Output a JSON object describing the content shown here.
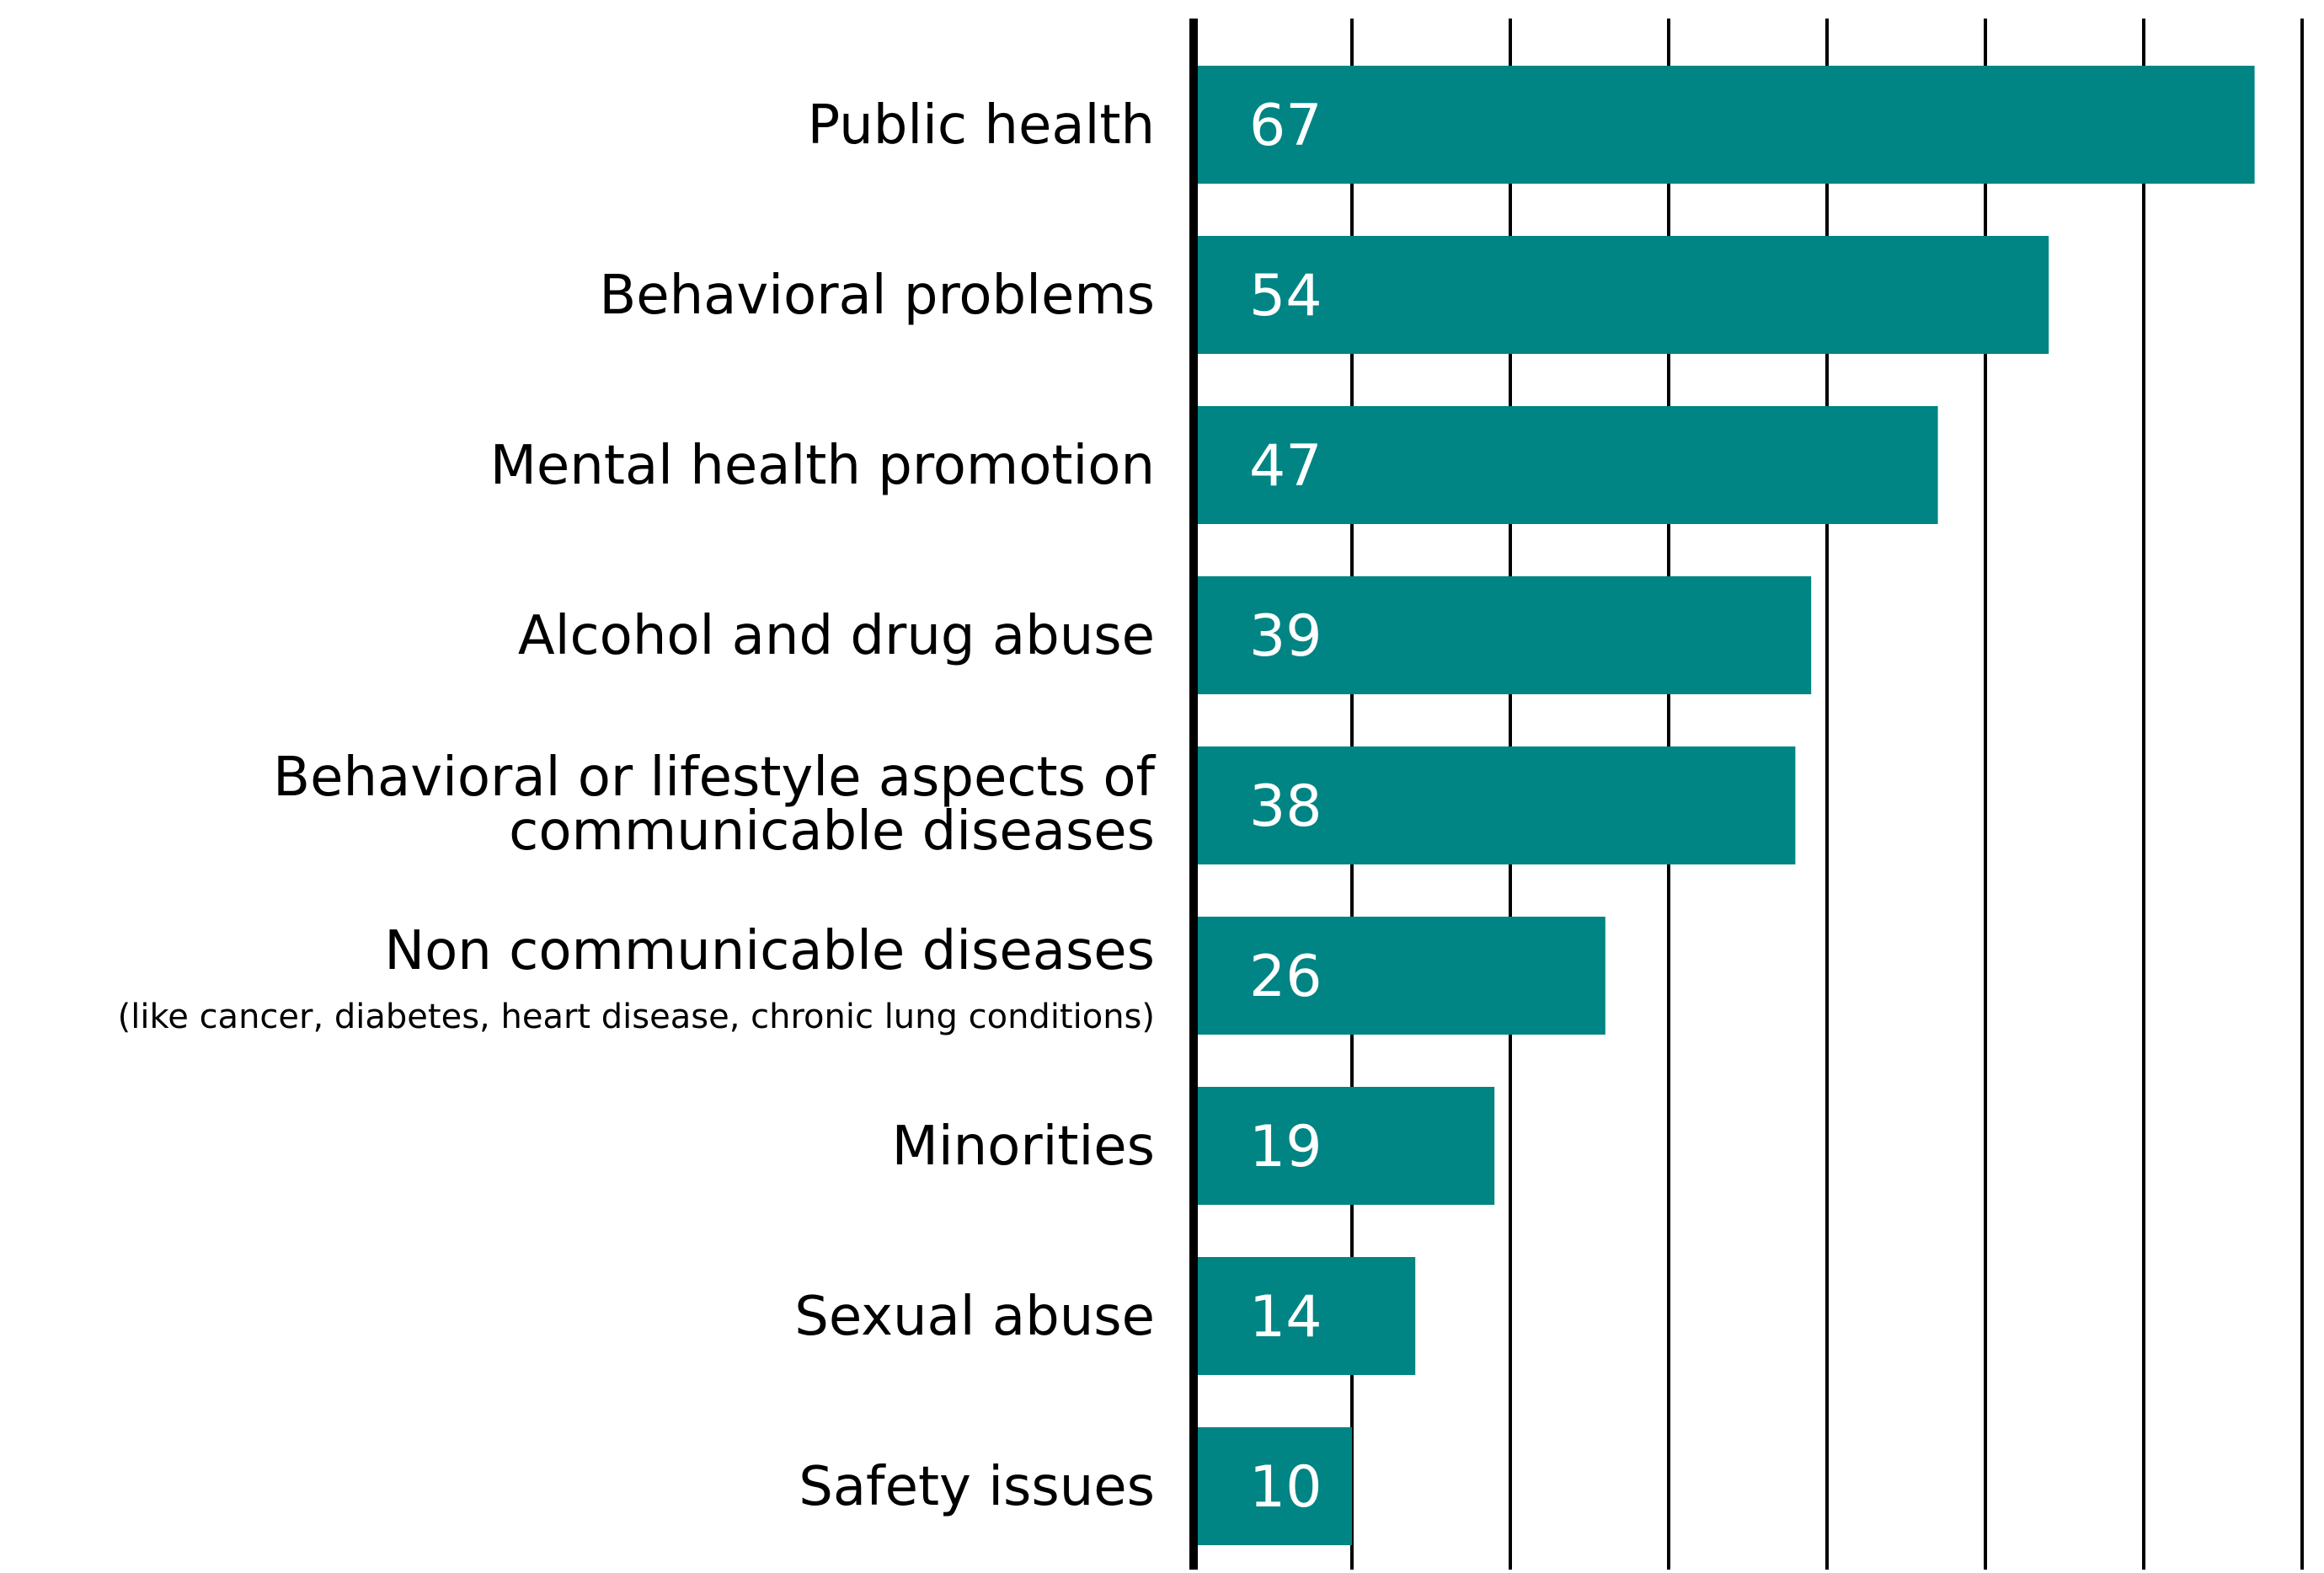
{
  "chart_data": {
    "type": "bar",
    "orientation": "horizontal",
    "title": "",
    "xlabel": "",
    "ylabel": "",
    "xlim": [
      0,
      70
    ],
    "grid": true,
    "grid_step": 10,
    "categories": [
      {
        "lines": [
          "Public health"
        ],
        "note": ""
      },
      {
        "lines": [
          "Behavioral problems"
        ],
        "note": ""
      },
      {
        "lines": [
          "Mental health promotion"
        ],
        "note": ""
      },
      {
        "lines": [
          "Alcohol and drug abuse"
        ],
        "note": ""
      },
      {
        "lines": [
          "Behavioral  or lifestyle aspects of",
          "communicable diseases"
        ],
        "note": ""
      },
      {
        "lines": [
          "Non communicable diseases"
        ],
        "note": "(like cancer, diabetes, heart disease, chronic lung conditions)"
      },
      {
        "lines": [
          "Minorities"
        ],
        "note": ""
      },
      {
        "lines": [
          "Sexual abuse"
        ],
        "note": ""
      },
      {
        "lines": [
          "Safety issues"
        ],
        "note": ""
      }
    ],
    "values": [
      67,
      54,
      47,
      39,
      38,
      26,
      19,
      14,
      10
    ],
    "data_labels": [
      "67",
      "54",
      "47",
      "39",
      "38",
      "26",
      "19",
      "14",
      "10"
    ],
    "colors": {
      "bar": "#008484",
      "bar_label": "#ffffff",
      "text": "#000000",
      "grid": "#000000",
      "axis": "#000000"
    }
  }
}
